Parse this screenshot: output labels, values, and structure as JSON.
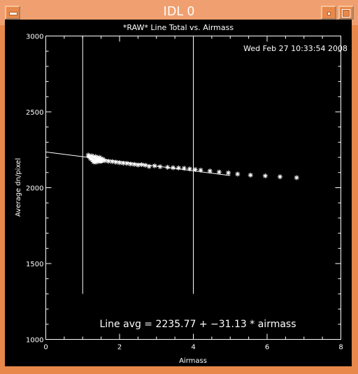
{
  "window": {
    "title": "IDL 0",
    "accent": "#e8884a"
  },
  "plot": {
    "title": "*RAW* Line Total vs. Airmass",
    "timestamp": "Wed Feb 27 10:33:54 2008",
    "fit_label": "Line avg = 2235.77 + −31.13 * airmass"
  },
  "chart_data": {
    "type": "scatter",
    "title": "*RAW* Line Total vs. Airmass",
    "xlabel": "Airmass",
    "ylabel": "Average dn/pixel",
    "xlim": [
      0,
      8
    ],
    "ylim": [
      1000,
      3000
    ],
    "xticks": [
      "0",
      "2",
      "4",
      "6",
      "8"
    ],
    "yticks": [
      "1000",
      "1500",
      "2000",
      "2500",
      "3000"
    ],
    "grid": false,
    "marker": "asterisk",
    "series": [
      {
        "x": [
          1.15,
          1.18,
          1.2,
          1.22,
          1.25,
          1.27,
          1.3,
          1.32,
          1.35,
          1.37,
          1.4,
          1.42,
          1.45,
          1.47,
          1.5,
          1.52,
          1.55,
          1.3,
          1.36,
          1.44,
          1.5,
          1.6,
          1.7,
          1.8,
          1.9,
          2.0,
          2.1,
          2.2,
          2.3,
          2.4,
          2.5,
          2.6,
          2.7,
          2.8,
          2.95,
          3.1,
          3.3,
          3.45,
          3.6,
          3.75,
          3.9,
          4.05,
          4.2,
          4.45,
          4.7,
          4.95,
          5.2,
          5.55,
          5.95,
          6.35,
          6.8
        ],
        "y": [
          2215,
          2205,
          2198,
          2190,
          2210,
          2182,
          2200,
          2175,
          2205,
          2185,
          2195,
          2180,
          2200,
          2178,
          2192,
          2176,
          2188,
          2170,
          2168,
          2172,
          2176,
          2178,
          2174,
          2172,
          2168,
          2165,
          2162,
          2160,
          2156,
          2154,
          2150,
          2152,
          2148,
          2140,
          2144,
          2138,
          2135,
          2132,
          2130,
          2128,
          2124,
          2120,
          2116,
          2110,
          2103,
          2098,
          2090,
          2083,
          2078,
          2072,
          2066
        ]
      }
    ],
    "fit": {
      "intercept": 2235.77,
      "slope": -31.13,
      "x_range": [
        0,
        5
      ]
    },
    "vertical_lines_x": [
      1,
      4
    ],
    "vertical_lines_y_range": [
      1300,
      3000
    ]
  }
}
